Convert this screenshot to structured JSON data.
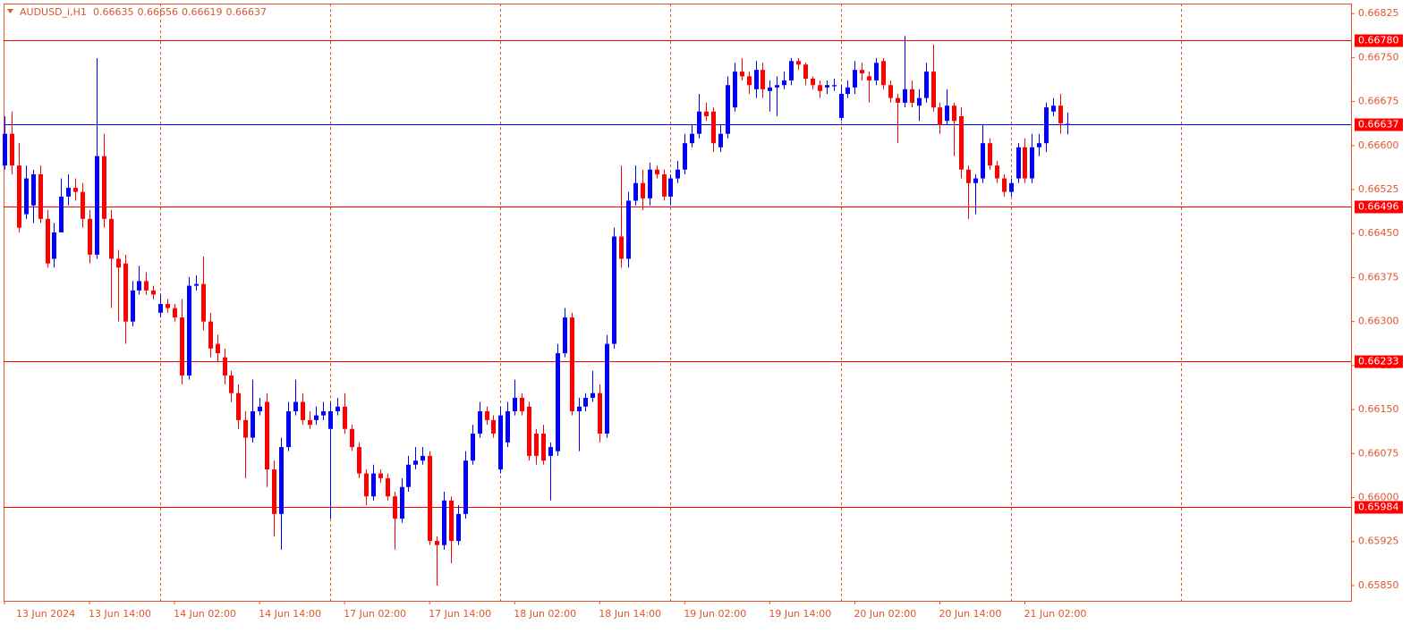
{
  "chart_data": {
    "type": "candlestick",
    "title": "AUDUSD_i,H1",
    "header_labels": [
      "0.66635",
      "0.66656",
      "0.66619",
      "0.66637"
    ],
    "up_color": "#0000ff",
    "down_color": "#ff0000",
    "ylim": [
      0.65824,
      0.66842
    ],
    "yticks": [
      {
        "value": 0.66825,
        "label": "0.66825"
      },
      {
        "value": 0.6675,
        "label": "0.66750"
      },
      {
        "value": 0.66675,
        "label": "0.66675"
      },
      {
        "value": 0.666,
        "label": "0.66600"
      },
      {
        "value": 0.66525,
        "label": "0.66525"
      },
      {
        "value": 0.6645,
        "label": "0.66450"
      },
      {
        "value": 0.66375,
        "label": "0.66375"
      },
      {
        "value": 0.663,
        "label": "0.66300"
      },
      {
        "value": 0.66225,
        "label": "0.66225"
      },
      {
        "value": 0.6615,
        "label": "0.66150"
      },
      {
        "value": 0.66075,
        "label": "0.66075"
      },
      {
        "value": 0.66,
        "label": "0.66000"
      },
      {
        "value": 0.65925,
        "label": "0.65925"
      },
      {
        "value": 0.6585,
        "label": "0.65850"
      }
    ],
    "xticks": [
      {
        "value": 0,
        "label": "13 Jun 2024"
      },
      {
        "value": 12,
        "label": "13 Jun 14:00"
      },
      {
        "value": 24,
        "label": "14 Jun 02:00"
      },
      {
        "value": 36,
        "label": "14 Jun 14:00"
      },
      {
        "value": 48,
        "label": "17 Jun 02:00"
      },
      {
        "value": 60,
        "label": "17 Jun 14:00"
      },
      {
        "value": 72,
        "label": "18 Jun 02:00"
      },
      {
        "value": 84,
        "label": "18 Jun 14:00"
      },
      {
        "value": 96,
        "label": "19 Jun 02:00"
      },
      {
        "value": 108,
        "label": "19 Jun 14:00"
      },
      {
        "value": 120,
        "label": "20 Jun 02:00"
      },
      {
        "value": 132,
        "label": "20 Jun 14:00"
      },
      {
        "value": 144,
        "label": "21 Jun 02:00"
      }
    ],
    "xgrid": [
      22,
      46,
      70,
      94,
      118,
      142,
      166
    ],
    "levels": [
      {
        "value": 0.6678,
        "label": "0.66780"
      },
      {
        "value": 0.66496,
        "label": "0.66496"
      },
      {
        "value": 0.66233,
        "label": "0.66233"
      },
      {
        "value": 0.65984,
        "label": "0.65984"
      }
    ],
    "level_color": "#ff0000",
    "bid": {
      "value": 0.66637,
      "label": "0.66637"
    },
    "bid_color": "#0000ff",
    "candles": [
      [
        0.66566,
        0.6665,
        0.66559,
        0.6662
      ],
      [
        0.6662,
        0.66658,
        0.66551,
        0.66566
      ],
      [
        0.66566,
        0.66604,
        0.66452,
        0.6646
      ],
      [
        0.66483,
        0.66566,
        0.66475,
        0.66544
      ],
      [
        0.66498,
        0.66559,
        0.66468,
        0.66551
      ],
      [
        0.66551,
        0.66566,
        0.66468,
        0.66475
      ],
      [
        0.66475,
        0.6649,
        0.66392,
        0.66399
      ],
      [
        0.66407,
        0.66468,
        0.66392,
        0.66452
      ],
      [
        0.66452,
        0.66544,
        0.6646,
        0.66513
      ],
      [
        0.66513,
        0.66551,
        0.66498,
        0.66528
      ],
      [
        0.66528,
        0.66544,
        0.66506,
        0.66521
      ],
      [
        0.66521,
        0.66536,
        0.6646,
        0.66475
      ],
      [
        0.66475,
        0.6649,
        0.66399,
        0.66414
      ],
      [
        0.66414,
        0.66749,
        0.66407,
        0.66582
      ],
      [
        0.66582,
        0.6662,
        0.6646,
        0.66475
      ],
      [
        0.66475,
        0.6649,
        0.66323,
        0.66407
      ],
      [
        0.66407,
        0.66422,
        0.663,
        0.66392
      ],
      [
        0.66399,
        0.66414,
        0.66262,
        0.663
      ],
      [
        0.663,
        0.66369,
        0.66292,
        0.66353
      ],
      [
        0.66353,
        0.66395,
        0.66346,
        0.66369
      ],
      [
        0.66369,
        0.66384,
        0.66346,
        0.66353
      ],
      [
        0.66353,
        0.66361,
        0.66338,
        0.66346
      ],
      [
        0.66315,
        0.66346,
        0.66307,
        0.6633
      ],
      [
        0.6633,
        0.66338,
        0.66315,
        0.66323
      ],
      [
        0.66323,
        0.6633,
        0.663,
        0.66307
      ],
      [
        0.66307,
        0.66338,
        0.66193,
        0.66208
      ],
      [
        0.66208,
        0.66376,
        0.66201,
        0.66361
      ],
      [
        0.66361,
        0.66379,
        0.66353,
        0.66364
      ],
      [
        0.66364,
        0.66411,
        0.66285,
        0.663
      ],
      [
        0.663,
        0.66315,
        0.66239,
        0.66254
      ],
      [
        0.66262,
        0.66277,
        0.66231,
        0.66246
      ],
      [
        0.66239,
        0.66254,
        0.66193,
        0.66208
      ],
      [
        0.66208,
        0.66216,
        0.66163,
        0.66178
      ],
      [
        0.66178,
        0.66193,
        0.66117,
        0.66132
      ],
      [
        0.66132,
        0.66147,
        0.66033,
        0.66102
      ],
      [
        0.66102,
        0.66201,
        0.66094,
        0.66147
      ],
      [
        0.66147,
        0.6617,
        0.6614,
        0.66155
      ],
      [
        0.66163,
        0.66178,
        0.66018,
        0.66048
      ],
      [
        0.66048,
        0.66063,
        0.65934,
        0.65972
      ],
      [
        0.65972,
        0.66102,
        0.65911,
        0.66086
      ],
      [
        0.66086,
        0.66163,
        0.66079,
        0.66147
      ],
      [
        0.66147,
        0.66201,
        0.6614,
        0.66163
      ],
      [
        0.66163,
        0.66178,
        0.66124,
        0.66132
      ],
      [
        0.66132,
        0.66147,
        0.66117,
        0.66124
      ],
      [
        0.66132,
        0.66155,
        0.66124,
        0.6614
      ],
      [
        0.6614,
        0.66163,
        0.66132,
        0.66147
      ],
      [
        0.66117,
        0.66163,
        0.65964,
        0.66147
      ],
      [
        0.66147,
        0.6617,
        0.6614,
        0.66155
      ],
      [
        0.66155,
        0.66178,
        0.66109,
        0.66117
      ],
      [
        0.66117,
        0.66124,
        0.66079,
        0.66086
      ],
      [
        0.66086,
        0.66094,
        0.66033,
        0.66041
      ],
      [
        0.66041,
        0.66048,
        0.65987,
        0.66002
      ],
      [
        0.66002,
        0.66056,
        0.65995,
        0.66041
      ],
      [
        0.66041,
        0.66048,
        0.66025,
        0.66033
      ],
      [
        0.66033,
        0.66041,
        0.65995,
        0.66002
      ],
      [
        0.66002,
        0.6601,
        0.65911,
        0.65964
      ],
      [
        0.65964,
        0.66033,
        0.65957,
        0.66018
      ],
      [
        0.66018,
        0.66071,
        0.6601,
        0.66056
      ],
      [
        0.66056,
        0.66086,
        0.66048,
        0.66063
      ],
      [
        0.66063,
        0.66086,
        0.66056,
        0.66071
      ],
      [
        0.66071,
        0.66079,
        0.65919,
        0.65926
      ],
      [
        0.65926,
        0.65934,
        0.6585,
        0.65919
      ],
      [
        0.65919,
        0.6601,
        0.65911,
        0.65995
      ],
      [
        0.65995,
        0.66002,
        0.65888,
        0.65926
      ],
      [
        0.65926,
        0.65987,
        0.65919,
        0.65972
      ],
      [
        0.65972,
        0.66079,
        0.65964,
        0.66063
      ],
      [
        0.66063,
        0.66124,
        0.66056,
        0.66109
      ],
      [
        0.66109,
        0.66163,
        0.66102,
        0.66147
      ],
      [
        0.66147,
        0.66155,
        0.66124,
        0.66132
      ],
      [
        0.66132,
        0.6614,
        0.66102,
        0.66109
      ],
      [
        0.66048,
        0.66155,
        0.66041,
        0.6614
      ],
      [
        0.66094,
        0.66163,
        0.66086,
        0.66147
      ],
      [
        0.66147,
        0.66201,
        0.6614,
        0.6617
      ],
      [
        0.6617,
        0.66178,
        0.6614,
        0.66147
      ],
      [
        0.66155,
        0.66163,
        0.66063,
        0.66071
      ],
      [
        0.66109,
        0.66117,
        0.66056,
        0.66071
      ],
      [
        0.66109,
        0.66124,
        0.66056,
        0.66063
      ],
      [
        0.66071,
        0.66094,
        0.65995,
        0.66086
      ],
      [
        0.66079,
        0.66262,
        0.66071,
        0.66246
      ],
      [
        0.66246,
        0.66323,
        0.66239,
        0.66307
      ],
      [
        0.66307,
        0.66315,
        0.6614,
        0.66147
      ],
      [
        0.66147,
        0.6617,
        0.66079,
        0.66155
      ],
      [
        0.66155,
        0.66178,
        0.66147,
        0.6617
      ],
      [
        0.6617,
        0.66216,
        0.66163,
        0.66178
      ],
      [
        0.66178,
        0.66193,
        0.66094,
        0.66109
      ],
      [
        0.66109,
        0.66277,
        0.66102,
        0.66262
      ],
      [
        0.66262,
        0.6646,
        0.66254,
        0.66445
      ],
      [
        0.66445,
        0.66566,
        0.66392,
        0.66407
      ],
      [
        0.66407,
        0.66521,
        0.66392,
        0.66506
      ],
      [
        0.66506,
        0.66566,
        0.66498,
        0.66536
      ],
      [
        0.66536,
        0.66559,
        0.6649,
        0.6651
      ],
      [
        0.6651,
        0.66571,
        0.66498,
        0.66559
      ],
      [
        0.66559,
        0.66566,
        0.66544,
        0.66551
      ],
      [
        0.66551,
        0.66559,
        0.66506,
        0.66513
      ],
      [
        0.66513,
        0.66551,
        0.66498,
        0.66544
      ],
      [
        0.66544,
        0.66574,
        0.66536,
        0.66559
      ],
      [
        0.66559,
        0.6662,
        0.66551,
        0.66604
      ],
      [
        0.66604,
        0.66635,
        0.66597,
        0.6662
      ],
      [
        0.6662,
        0.66688,
        0.66612,
        0.66658
      ],
      [
        0.66658,
        0.66673,
        0.66642,
        0.6665
      ],
      [
        0.66658,
        0.66665,
        0.66589,
        0.66604
      ],
      [
        0.66597,
        0.66635,
        0.66589,
        0.6662
      ],
      [
        0.6662,
        0.66718,
        0.66612,
        0.66703
      ],
      [
        0.66665,
        0.66741,
        0.66658,
        0.66726
      ],
      [
        0.66726,
        0.66749,
        0.66711,
        0.66718
      ],
      [
        0.66718,
        0.66726,
        0.66688,
        0.66703
      ],
      [
        0.66696,
        0.66744,
        0.66681,
        0.66729
      ],
      [
        0.66729,
        0.66741,
        0.66681,
        0.66696
      ],
      [
        0.66693,
        0.66711,
        0.66658,
        0.66699
      ],
      [
        0.66699,
        0.66718,
        0.6665,
        0.66703
      ],
      [
        0.66703,
        0.66726,
        0.66696,
        0.66711
      ],
      [
        0.66711,
        0.66749,
        0.66703,
        0.66744
      ],
      [
        0.66744,
        0.66749,
        0.66729,
        0.66738
      ],
      [
        0.66738,
        0.66741,
        0.66703,
        0.66714
      ],
      [
        0.66714,
        0.66718,
        0.66696,
        0.66703
      ],
      [
        0.66703,
        0.66711,
        0.66681,
        0.66693
      ],
      [
        0.66699,
        0.66711,
        0.66688,
        0.66703
      ],
      [
        0.66701,
        0.66714,
        0.66693,
        0.66703
      ],
      [
        0.66647,
        0.66703,
        0.66642,
        0.66688
      ],
      [
        0.66688,
        0.66711,
        0.66681,
        0.66699
      ],
      [
        0.66699,
        0.66744,
        0.66688,
        0.66729
      ],
      [
        0.66729,
        0.66741,
        0.66711,
        0.66723
      ],
      [
        0.66718,
        0.66726,
        0.66673,
        0.66711
      ],
      [
        0.66711,
        0.66749,
        0.66703,
        0.66741
      ],
      [
        0.66744,
        0.66749,
        0.66696,
        0.66703
      ],
      [
        0.66703,
        0.66711,
        0.66673,
        0.66681
      ],
      [
        0.66681,
        0.66688,
        0.66604,
        0.66673
      ],
      [
        0.66673,
        0.66787,
        0.66665,
        0.66696
      ],
      [
        0.66696,
        0.66711,
        0.66665,
        0.66673
      ],
      [
        0.66668,
        0.66696,
        0.66642,
        0.66681
      ],
      [
        0.66681,
        0.66741,
        0.66673,
        0.66726
      ],
      [
        0.66726,
        0.66772,
        0.66658,
        0.66665
      ],
      [
        0.66665,
        0.66673,
        0.6662,
        0.66635
      ],
      [
        0.66642,
        0.66696,
        0.66635,
        0.66668
      ],
      [
        0.66668,
        0.66673,
        0.66582,
        0.66642
      ],
      [
        0.6665,
        0.66665,
        0.66544,
        0.66559
      ],
      [
        0.66559,
        0.66566,
        0.66475,
        0.66536
      ],
      [
        0.66536,
        0.66551,
        0.66483,
        0.66544
      ],
      [
        0.66544,
        0.66635,
        0.66536,
        0.66604
      ],
      [
        0.66604,
        0.66612,
        0.66559,
        0.66566
      ],
      [
        0.66566,
        0.66574,
        0.66536,
        0.66544
      ],
      [
        0.66544,
        0.66551,
        0.66513,
        0.66521
      ],
      [
        0.66521,
        0.66544,
        0.66513,
        0.66536
      ],
      [
        0.66544,
        0.66604,
        0.66536,
        0.66597
      ],
      [
        0.66597,
        0.66612,
        0.66536,
        0.66544
      ],
      [
        0.66544,
        0.6662,
        0.66536,
        0.66597
      ],
      [
        0.66597,
        0.6662,
        0.66582,
        0.66604
      ],
      [
        0.66604,
        0.66673,
        0.66589,
        0.66665
      ],
      [
        0.66658,
        0.66681,
        0.6665,
        0.66668
      ],
      [
        0.66668,
        0.66688,
        0.6662,
        0.66638
      ],
      [
        0.66635,
        0.66656,
        0.66619,
        0.66637
      ]
    ]
  }
}
